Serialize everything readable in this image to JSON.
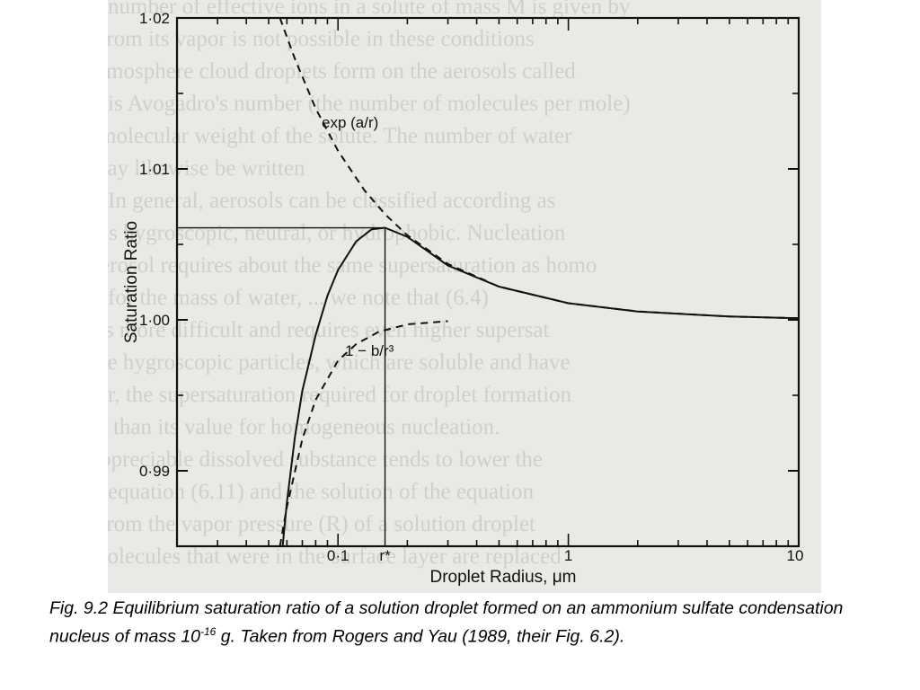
{
  "chart_data": {
    "type": "line",
    "xscale": "log",
    "xlim": [
      0.02,
      10
    ],
    "ylim": [
      0.985,
      1.02
    ],
    "ylabel": "Saturation Ratio",
    "xlabel": "Droplet Radius, μm",
    "x_ticks": [
      "0·1",
      "r*",
      "1",
      "10"
    ],
    "y_ticks": [
      "1·02",
      "1·01",
      "S*",
      "1·00",
      "0·99"
    ],
    "grid": false,
    "critical_point": {
      "x": 0.16,
      "y": 1.0061,
      "x_label": "r*",
      "y_label": "S*"
    },
    "series": [
      {
        "name": "exp (a/r)",
        "style": "dashed",
        "x": [
          0.056,
          0.065,
          0.08,
          0.1,
          0.13,
          0.16,
          0.2,
          0.3,
          0.5,
          1,
          2,
          5,
          10
        ],
        "y": [
          1.02,
          1.0173,
          1.014,
          1.0112,
          1.0086,
          1.007,
          1.0056,
          1.0037,
          1.0022,
          1.0011,
          1.00056,
          1.00022,
          1.00011
        ]
      },
      {
        "name": "1 − b/r³",
        "style": "dashed",
        "x": [
          0.056,
          0.06,
          0.07,
          0.08,
          0.1,
          0.12,
          0.15,
          0.2,
          0.3
        ],
        "y": [
          0.985,
          0.9876,
          0.9921,
          0.9947,
          0.9973,
          0.9984,
          0.9992,
          0.9997,
          0.99991
        ]
      },
      {
        "name": "",
        "style": "solid",
        "x": [
          0.0575,
          0.06,
          0.065,
          0.07,
          0.08,
          0.09,
          0.1,
          0.12,
          0.14,
          0.16,
          0.2,
          0.3,
          0.5,
          1,
          2,
          5,
          10
        ],
        "y": [
          0.985,
          0.9879,
          0.9922,
          0.9953,
          0.999,
          1.0016,
          1.0033,
          1.0052,
          1.006,
          1.0061,
          1.0055,
          1.0036,
          1.0022,
          1.0011,
          1.00055,
          1.00022,
          1.00011
        ]
      }
    ]
  },
  "caption": {
    "prefix": "Fig. 9.2  Equilibrium saturation ratio of a solution droplet formed on an ammonium sulfate condensation nucleus of mass 10",
    "exponent": "-16",
    "suffix": " g.  Taken from Rogers and Yau (1989, their Fig. 6.2)."
  },
  "show_through": [
    "number of effective ions in a solute of mass M is given by",
    "from its vapor is not possible in these conditions",
    "atmosphere cloud droplets form on the aerosols called",
    "is Avogadro's number (the number of molecules per mole)",
    "molecular weight of the solute. The number of water",
    "may likewise be written",
    "In general, aerosols can be classified according as",
    "as hygroscopic, neutral, or hydrophobic. Nucleation",
    "aerosol requires about the same supersaturation as homo",
    "for the mass of water, ... we note that (6.4)",
    "is more difficult and requires even higher supersat",
    "the hygroscopic particles, which are soluble and have",
    "r, the supersaturation required for droplet formation",
    "s than its value for homogeneous nucleation.",
    "appreciable dissolved substance tends to lower the",
    "equation (6.11) and the solution of the equation",
    "from the vapor pressure (R) of a solution droplet",
    "molecules that were in the surface layer are replaced"
  ]
}
